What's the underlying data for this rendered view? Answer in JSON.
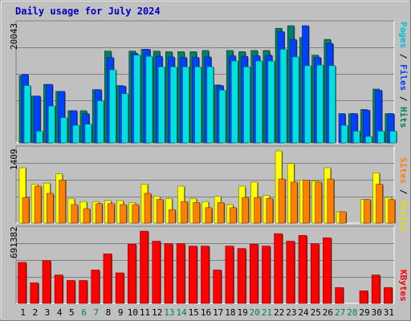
{
  "chart_data": {
    "title": "Daily usage for July 2024",
    "type": "bar",
    "categories": [
      "1",
      "2",
      "3",
      "4",
      "5",
      "6",
      "7",
      "8",
      "9",
      "10",
      "11",
      "12",
      "13",
      "14",
      "15",
      "16",
      "17",
      "18",
      "19",
      "20",
      "21",
      "22",
      "23",
      "24",
      "25",
      "26",
      "27",
      "28",
      "29",
      "30",
      "31"
    ],
    "weekend_days": [
      "6",
      "7",
      "13",
      "14",
      "20",
      "21",
      "27",
      "28"
    ],
    "panels": [
      {
        "name": "Pages / Files / Hits",
        "ymax_label": "20043",
        "ylim": [
          0,
          20043
        ],
        "right_label_parts": [
          "Pages",
          "Files",
          "Hits"
        ],
        "right_label_colors": [
          "#00c0e0",
          "#0040ff",
          "#008060"
        ],
        "series": [
          {
            "name": "Hits",
            "color": "#008060",
            "values": [
              11500,
              8000,
              10000,
              8800,
              5500,
              5500,
              9100,
              15700,
              9800,
              15700,
              16000,
              15700,
              15600,
              15600,
              15600,
              15800,
              9900,
              15800,
              15600,
              15800,
              15800,
              19600,
              20043,
              18000,
              15000,
              17700,
              0,
              5000,
              5700,
              9200,
              5000
            ]
          },
          {
            "name": "Files",
            "color": "#0040ff",
            "values": [
              11700,
              8000,
              10000,
              8800,
              5500,
              5000,
              9100,
              14600,
              9700,
              15300,
              16000,
              14800,
              14700,
              14600,
              14600,
              14700,
              9800,
              14900,
              14800,
              14900,
              15000,
              19000,
              17700,
              20043,
              14600,
              17000,
              5000,
              5000,
              5600,
              9000,
              5000
            ]
          },
          {
            "name": "Pages",
            "color": "#00e0e0",
            "values": [
              9800,
              2000,
              6300,
              4300,
              3000,
              3200,
              7200,
              12500,
              8400,
              15000,
              14800,
              13000,
              13000,
              13000,
              13000,
              13000,
              9000,
              14000,
              13000,
              14000,
              14000,
              16000,
              14700,
              13200,
              13300,
              13200,
              3000,
              2000,
              1100,
              2000,
              2000
            ]
          }
        ]
      },
      {
        "name": "Visits / Sites",
        "ymax_label": "1409",
        "ylim": [
          0,
          1409
        ],
        "right_label_parts": [
          "Sites",
          "Visits"
        ],
        "right_label_colors": [
          "#ff8000",
          "#e0e000"
        ],
        "series": [
          {
            "name": "Visits",
            "color": "#ffff00",
            "values": [
              1080,
              760,
              780,
              960,
              480,
              420,
              420,
              440,
              440,
              400,
              760,
              520,
              480,
              720,
              480,
              420,
              520,
              360,
              720,
              800,
              540,
              1409,
              1160,
              840,
              820,
              1080,
              220,
              0,
              460,
              980,
              500
            ]
          },
          {
            "name": "Sites",
            "color": "#ff8000",
            "values": [
              500,
              720,
              580,
              840,
              360,
              280,
              380,
              380,
              360,
              360,
              580,
              460,
              260,
              420,
              400,
              300,
              400,
              300,
              500,
              500,
              480,
              860,
              800,
              840,
              800,
              860,
              220,
              0,
              460,
              760,
              460
            ]
          }
        ]
      },
      {
        "name": "KBytes",
        "ymax_label": "691382",
        "ylim": [
          0,
          691382
        ],
        "right_label_parts": [
          "KBytes"
        ],
        "right_label_colors": [
          "#ff0000"
        ],
        "series": [
          {
            "name": "KBytes",
            "color": "#ff0000",
            "values": [
              392000,
              196000,
              409000,
              271000,
              219000,
              219000,
              319000,
              474000,
              292000,
              566000,
              691382,
              595000,
              571000,
              571000,
              548000,
              548000,
              319000,
              548000,
              525000,
              566000,
              548000,
              667000,
              595000,
              650000,
              571000,
              627000,
              151000,
              0,
              120000,
              271000,
              151000
            ]
          }
        ]
      }
    ]
  }
}
